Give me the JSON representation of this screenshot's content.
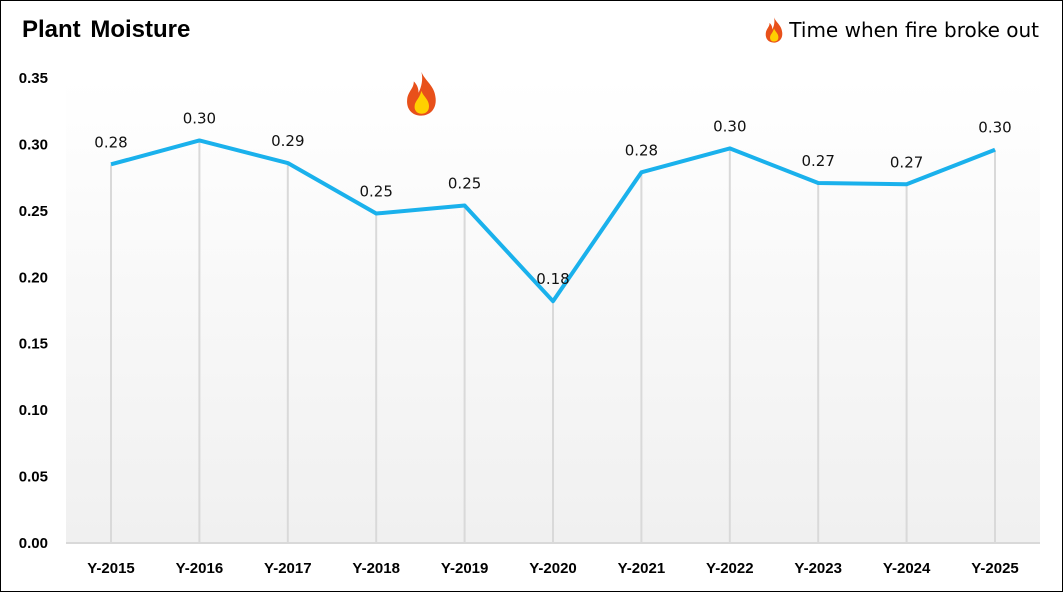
{
  "chart_data": {
    "type": "line",
    "title": "Plant Moisture",
    "legend": {
      "label": "Time when fire broke out",
      "icon": "fire-icon",
      "placement": "top-right"
    },
    "categories": [
      "Y-2015",
      "Y-2016",
      "Y-2017",
      "Y-2018",
      "Y-2019",
      "Y-2020",
      "Y-2021",
      "Y-2022",
      "Y-2023",
      "Y-2024",
      "Y-2025"
    ],
    "series": [
      {
        "values": [
          0.285,
          0.303,
          0.286,
          0.248,
          0.254,
          0.182,
          0.279,
          0.297,
          0.271,
          0.27,
          0.296
        ],
        "color": "#1ab1ec"
      }
    ],
    "data_labels": [
      "0.28",
      "0.30",
      "0.29",
      "0.25",
      "0.25",
      "0.18",
      "0.28",
      "0.30",
      "0.27",
      "0.27",
      "0.30"
    ],
    "yticks": [
      "0.00",
      "0.05",
      "0.10",
      "0.15",
      "0.20",
      "0.25",
      "0.30",
      "0.35"
    ],
    "ylim": [
      0,
      0.35
    ],
    "fire_marker_between": [
      "Y-2018",
      "Y-2019"
    ],
    "grid": "vertical",
    "colors": {
      "line": "#1ab1ec",
      "gridline": "#d9d9d9",
      "fire_outer": "#e8501a",
      "fire_inner": "#ffd000"
    }
  }
}
